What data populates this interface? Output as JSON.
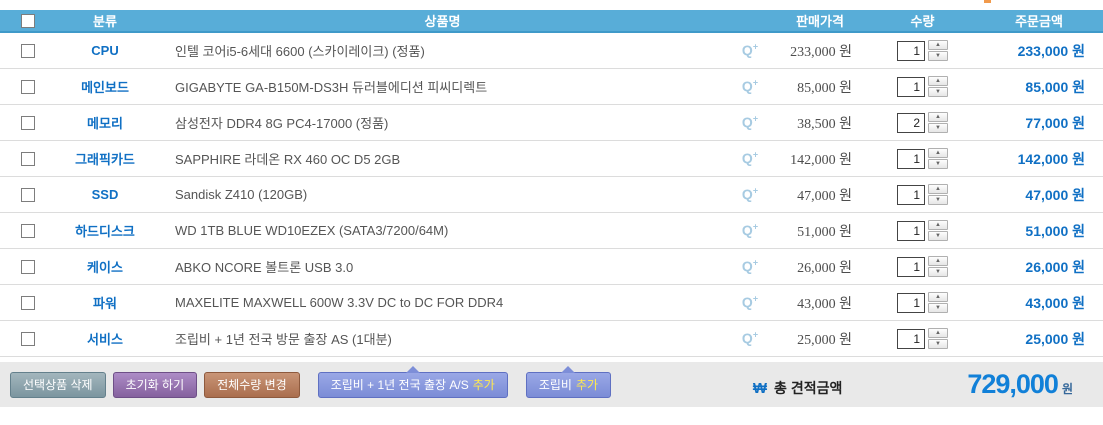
{
  "colors": {
    "header_blue": "#58add8",
    "header_blue_border": "#3f9ac9",
    "accent_blue": "#1070c4",
    "zoom_icon_blue": "#a7cbe2",
    "highlight_yellow": "#ffe94e",
    "footer_bar_gray": "#e9e9e9"
  },
  "icons": {
    "zoom_q": "Q",
    "zoom_plus": "+",
    "spinner_up": "▲",
    "spinner_down": "▼"
  },
  "table": {
    "columns": {
      "category": "분류",
      "product": "상품명",
      "price": "판매가격",
      "qty": "수량",
      "amount": "주문금액"
    }
  },
  "rows": [
    {
      "category": "CPU",
      "product": "인텔 코어i5-6세대 6600 (스카이레이크) (정품)",
      "price": "233,000 원",
      "qty": "1",
      "amount": "233,000 원"
    },
    {
      "category": "메인보드",
      "product": "GIGABYTE GA-B150M-DS3H 듀러블에디션 피씨디렉트",
      "price": "85,000 원",
      "qty": "1",
      "amount": "85,000 원"
    },
    {
      "category": "메모리",
      "product": "삼성전자 DDR4 8G PC4-17000 (정품)",
      "price": "38,500 원",
      "qty": "2",
      "amount": "77,000 원"
    },
    {
      "category": "그래픽카드",
      "product": "SAPPHIRE 라데온 RX 460 OC D5 2GB",
      "price": "142,000 원",
      "qty": "1",
      "amount": "142,000 원"
    },
    {
      "category": "SSD",
      "product": "Sandisk Z410 (120GB)",
      "price": "47,000 원",
      "qty": "1",
      "amount": "47,000 원"
    },
    {
      "category": "하드디스크",
      "product": "WD 1TB BLUE WD10EZEX (SATA3/7200/64M)",
      "price": "51,000 원",
      "qty": "1",
      "amount": "51,000 원"
    },
    {
      "category": "케이스",
      "product": "ABKO NCORE 볼트론 USB 3.0",
      "price": "26,000 원",
      "qty": "1",
      "amount": "26,000 원"
    },
    {
      "category": "파워",
      "product": "MAXELITE MAXWELL 600W 3.3V DC to DC FOR DDR4",
      "price": "43,000 원",
      "qty": "1",
      "amount": "43,000 원"
    },
    {
      "category": "서비스",
      "product": "조립비 + 1년 전국 방문 출장 AS (1대분)",
      "price": "25,000 원",
      "qty": "1",
      "amount": "25,000 원"
    }
  ],
  "footer": {
    "delete_button": "선택상품 삭제",
    "reset_button": "초기화 하기",
    "change_qty_button": "전체수량 변경",
    "add_as_button_prefix": "조립비 + 1년 전국 출장 A/S",
    "add_as_button_highlight": "추가",
    "add_assembly_button_prefix": "조립비",
    "add_assembly_button_highlight": "추가",
    "total_symbol": "₩",
    "total_label": "총 견적금액",
    "total_value": "729,000",
    "total_unit": "원"
  }
}
